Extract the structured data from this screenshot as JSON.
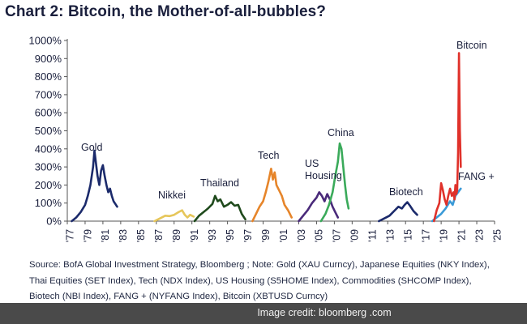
{
  "page": {
    "title": "Chart 2: Bitcoin, the Mother-of-all-bubbles?",
    "footnote_lines": [
      "Source: BofA Global Investment Strategy, Bloomberg ; Note: Gold (XAU Curncy), Japanese Equities (NKY Index),",
      "Thai Equities (SET Index), Tech (NDX Index), US Housing (S5HOME Index), Commodities (SHCOMP Index),",
      "Biotech (NBI Index), FANG + (NYFANG Index), Bitcoin (XBTUSD Curncy)"
    ],
    "credit": "Image credit: bloomberg .com"
  },
  "chart_data": {
    "type": "line",
    "title": "Chart 2: Bitcoin, the Mother-of-all-bubbles?",
    "xlabel": "",
    "ylabel": "",
    "xlim": [
      1977,
      2025
    ],
    "ylim": [
      0,
      1000
    ],
    "yticks": [
      0,
      100,
      200,
      300,
      400,
      500,
      600,
      700,
      800,
      900,
      1000
    ],
    "ytick_labels": [
      "0%",
      "100%",
      "200%",
      "300%",
      "400%",
      "500%",
      "600%",
      "700%",
      "800%",
      "900%",
      "1000%"
    ],
    "xticks": [
      1977,
      1979,
      1981,
      1983,
      1985,
      1987,
      1989,
      1991,
      1993,
      1995,
      1997,
      1999,
      2001,
      2003,
      2005,
      2007,
      2009,
      2011,
      2013,
      2015,
      2017,
      2019,
      2021,
      2023,
      2025
    ],
    "xtick_labels": [
      "'77",
      "'79",
      "'81",
      "'83",
      "'85",
      "'87",
      "'89",
      "'91",
      "'93",
      "'95",
      "'97",
      "'99",
      "'01",
      "'03",
      "'05",
      "'07",
      "'09",
      "'11",
      "'13",
      "'15",
      "'17",
      "'19",
      "'21",
      "'23",
      "'25"
    ],
    "grid": false,
    "series": [
      {
        "name": "Gold",
        "label": "Gold",
        "color": "#1b2a6b",
        "x": [
          1977.5,
          1978.0,
          1978.5,
          1979.0,
          1979.3,
          1979.6,
          1979.9,
          1980.05,
          1980.2,
          1980.4,
          1980.6,
          1980.8,
          1981.0,
          1981.2,
          1981.4,
          1981.6,
          1981.8,
          1982.0,
          1982.2,
          1982.4,
          1982.6
        ],
        "y": [
          0,
          20,
          50,
          90,
          140,
          200,
          300,
          390,
          330,
          250,
          200,
          280,
          310,
          250,
          200,
          160,
          180,
          140,
          110,
          95,
          80
        ]
      },
      {
        "name": "Nikkei",
        "label": "Nikkei",
        "color": "#e6c65a",
        "x": [
          1986.8,
          1987.4,
          1988.0,
          1988.5,
          1989.0,
          1989.5,
          1989.9,
          1990.2,
          1990.5,
          1990.8,
          1991.2
        ],
        "y": [
          0,
          15,
          30,
          28,
          35,
          50,
          60,
          35,
          20,
          35,
          25
        ]
      },
      {
        "name": "Thailand",
        "label": "Thailand",
        "color": "#1f4a1c",
        "x": [
          1991.3,
          1991.8,
          1992.3,
          1992.8,
          1993.3,
          1993.6,
          1993.9,
          1994.2,
          1994.6,
          1995.0,
          1995.4,
          1995.8,
          1996.2,
          1996.6,
          1997.0
        ],
        "y": [
          0,
          30,
          50,
          70,
          95,
          140,
          110,
          120,
          80,
          90,
          105,
          85,
          90,
          40,
          10
        ]
      },
      {
        "name": "Tech",
        "label": "Tech",
        "color": "#e6852a",
        "x": [
          1997.8,
          1998.2,
          1998.6,
          1999.0,
          1999.3,
          1999.6,
          1999.9,
          2000.1,
          2000.3,
          2000.5,
          2000.8,
          2001.1,
          2001.4,
          2001.8,
          2002.2
        ],
        "y": [
          0,
          40,
          80,
          110,
          160,
          220,
          290,
          230,
          270,
          200,
          170,
          140,
          90,
          60,
          20
        ]
      },
      {
        "name": "US Housing",
        "label": "US\nHousing",
        "color": "#4a2a7a",
        "x": [
          2003.0,
          2003.5,
          2004.0,
          2004.5,
          2005.0,
          2005.3,
          2005.6,
          2005.9,
          2006.2,
          2006.5,
          2006.8,
          2007.1,
          2007.4
        ],
        "y": [
          0,
          30,
          60,
          100,
          130,
          160,
          140,
          110,
          150,
          120,
          80,
          50,
          20
        ]
      },
      {
        "name": "China",
        "label": "China",
        "color": "#3aaa5a",
        "x": [
          2005.5,
          2006.0,
          2006.4,
          2006.8,
          2007.1,
          2007.4,
          2007.6,
          2007.8,
          2008.0,
          2008.2,
          2008.4,
          2008.6
        ],
        "y": [
          0,
          40,
          90,
          160,
          250,
          330,
          430,
          400,
          300,
          200,
          120,
          70
        ]
      },
      {
        "name": "Biotech",
        "label": "Biotech",
        "color": "#1b2a6b",
        "x": [
          2012.0,
          2012.6,
          2013.2,
          2013.8,
          2014.2,
          2014.6,
          2014.9,
          2015.2,
          2015.5,
          2015.9,
          2016.3
        ],
        "y": [
          0,
          15,
          30,
          60,
          80,
          70,
          90,
          105,
          85,
          55,
          35
        ]
      },
      {
        "name": "FANG +",
        "label": "FANG +",
        "color": "#3a9ad8",
        "x": [
          2018.0,
          2018.5,
          2019.0,
          2019.5,
          2020.0,
          2020.3,
          2020.6,
          2020.9,
          2021.2
        ],
        "y": [
          0,
          20,
          40,
          70,
          110,
          90,
          140,
          160,
          180
        ]
      },
      {
        "name": "Bitcoin",
        "label": "Bitcoin",
        "color": "#e0312a",
        "x": [
          2018.2,
          2018.5,
          2018.8,
          2019.0,
          2019.2,
          2019.4,
          2019.6,
          2019.8,
          2020.0,
          2020.2,
          2020.4,
          2020.5,
          2020.6,
          2020.7,
          2020.8,
          2020.9,
          2021.0,
          2021.1,
          2021.2
        ],
        "y": [
          0,
          60,
          100,
          210,
          170,
          120,
          90,
          140,
          180,
          140,
          160,
          120,
          200,
          150,
          170,
          380,
          930,
          500,
          300
        ]
      }
    ]
  }
}
